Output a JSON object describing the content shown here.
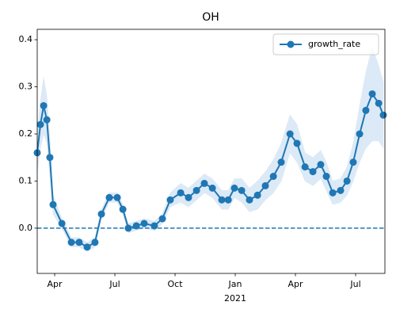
{
  "chart_data": {
    "type": "line",
    "title": "OH",
    "x": [
      2.13,
      2.29,
      2.45,
      2.61,
      2.76,
      2.92,
      3.36,
      3.83,
      4.22,
      4.62,
      5.01,
      5.33,
      5.72,
      6.12,
      6.4,
      6.67,
      7.07,
      7.46,
      7.97,
      8.37,
      8.76,
      9.28,
      9.67,
      10.07,
      10.46,
      10.86,
      11.33,
      11.65,
      11.96,
      12.32,
      12.71,
      13.11,
      13.5,
      13.9,
      14.29,
      14.73,
      15.08,
      15.48,
      15.87,
      16.26,
      16.54,
      16.86,
      17.25,
      17.57,
      17.88,
      18.2,
      18.51,
      18.83,
      19.15,
      19.38
    ],
    "series": [
      {
        "name": "growth_rate",
        "color": "#1f77b4",
        "values": [
          0.16,
          0.22,
          0.26,
          0.23,
          0.15,
          0.05,
          0.01,
          -0.03,
          -0.03,
          -0.04,
          -0.03,
          0.03,
          0.065,
          0.065,
          0.04,
          0.0,
          0.005,
          0.01,
          0.005,
          0.02,
          0.06,
          0.075,
          0.065,
          0.08,
          0.095,
          0.085,
          0.06,
          0.06,
          0.085,
          0.08,
          0.06,
          0.07,
          0.09,
          0.11,
          0.14,
          0.2,
          0.18,
          0.13,
          0.12,
          0.135,
          0.11,
          0.075,
          0.08,
          0.1,
          0.14,
          0.2,
          0.25,
          0.285,
          0.265,
          0.24
        ],
        "band_lower": [
          0.12,
          0.17,
          0.2,
          0.18,
          0.11,
          0.03,
          0.0,
          -0.04,
          -0.04,
          -0.05,
          -0.04,
          0.02,
          0.055,
          0.055,
          0.03,
          -0.01,
          -0.005,
          0.0,
          -0.005,
          0.01,
          0.045,
          0.055,
          0.045,
          0.06,
          0.075,
          0.065,
          0.04,
          0.04,
          0.065,
          0.055,
          0.035,
          0.04,
          0.06,
          0.075,
          0.1,
          0.16,
          0.14,
          0.1,
          0.09,
          0.105,
          0.08,
          0.05,
          0.055,
          0.07,
          0.1,
          0.14,
          0.17,
          0.185,
          0.185,
          0.17
        ],
        "band_upper": [
          0.2,
          0.27,
          0.32,
          0.28,
          0.19,
          0.07,
          0.02,
          -0.02,
          -0.02,
          -0.03,
          -0.02,
          0.04,
          0.075,
          0.075,
          0.05,
          0.01,
          0.015,
          0.02,
          0.015,
          0.03,
          0.075,
          0.095,
          0.085,
          0.1,
          0.115,
          0.105,
          0.08,
          0.08,
          0.105,
          0.105,
          0.085,
          0.1,
          0.12,
          0.145,
          0.18,
          0.24,
          0.22,
          0.16,
          0.15,
          0.165,
          0.14,
          0.1,
          0.105,
          0.13,
          0.18,
          0.26,
          0.33,
          0.385,
          0.345,
          0.31
        ],
        "band_color": "#dce9f6"
      }
    ],
    "xlim": [
      2.13,
      19.46
    ],
    "xticks": [
      {
        "value": 3,
        "label": "Apr"
      },
      {
        "value": 6,
        "label": "Jul"
      },
      {
        "value": 9,
        "label": "Oct"
      },
      {
        "value": 12,
        "label": "Jan"
      },
      {
        "value": 15,
        "label": "Apr"
      },
      {
        "value": 18,
        "label": "Jul"
      }
    ],
    "xticks_secondary": [
      {
        "value": 12,
        "label": "2021"
      }
    ],
    "ylim": [
      -0.096,
      0.422
    ],
    "yticks": [
      {
        "value": 0,
        "label": "0.0"
      },
      0.1,
      0.2,
      0.3,
      0.4
    ],
    "reference_line": {
      "value": 0,
      "style": "dashed"
    },
    "legend": "upper right",
    "markers": true
  }
}
